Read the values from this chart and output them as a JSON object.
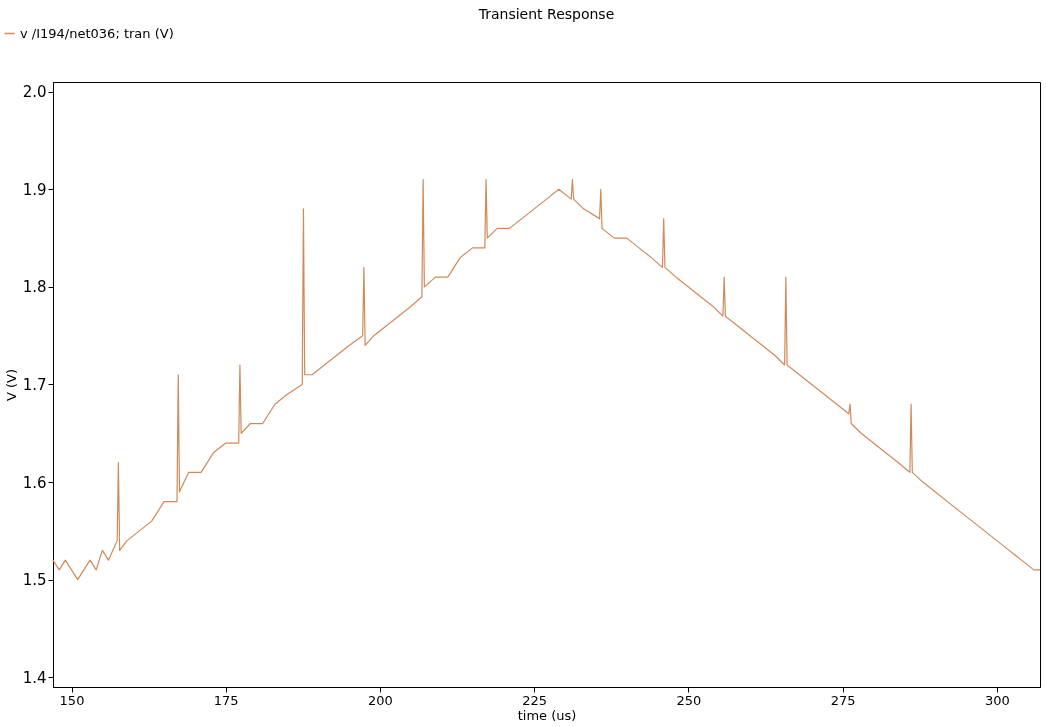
{
  "chart_data": {
    "type": "line",
    "title": "Transient Response",
    "xlabel": "time (us)",
    "ylabel": "V (V)",
    "xlim": [
      147,
      307
    ],
    "xticks": [
      150,
      175,
      200,
      225,
      250,
      275,
      300
    ],
    "ylim": [
      1.39,
      2.01
    ],
    "yticks": [
      1.4,
      1.5,
      1.6,
      1.7,
      1.8,
      1.9,
      {
        "value": 2,
        "label": "2.0"
      }
    ],
    "grid": false,
    "legend": "top left",
    "marker": "none",
    "line_style": "solid",
    "x": [
      147,
      148,
      149,
      150,
      151,
      152,
      153,
      154,
      155,
      156,
      157.4,
      157.6,
      157.8,
      159,
      161,
      163,
      165,
      167.1,
      167.3,
      167.5,
      169,
      171,
      173,
      175,
      177.1,
      177.3,
      177.5,
      179,
      181,
      183,
      185,
      187.4,
      187.6,
      187.8,
      189,
      191,
      193,
      195,
      197.2,
      197.4,
      197.6,
      199,
      201,
      203,
      205,
      206.8,
      207.0,
      207.2,
      209,
      211,
      213,
      215,
      217.0,
      217.2,
      217.4,
      219,
      221,
      223,
      225,
      227,
      229,
      231.0,
      231.2,
      231.4,
      233,
      235.6,
      235.8,
      236.0,
      238,
      240,
      242,
      244,
      245.8,
      246.0,
      246.2,
      248,
      250,
      252,
      254,
      255.6,
      255.8,
      256.0,
      258,
      260,
      262,
      264,
      265.6,
      265.8,
      266.0,
      268,
      270,
      272,
      274,
      276.0,
      276.2,
      276.4,
      278,
      280,
      282,
      284,
      285.9,
      286.1,
      286.3,
      288,
      290,
      292,
      294,
      296,
      298,
      300,
      302,
      304,
      306,
      307
    ],
    "series": [
      {
        "name": "v /I194/net036; tran (V)",
        "color": "#d08a5a",
        "values": [
          1.52,
          1.51,
          1.52,
          1.51,
          1.5,
          1.51,
          1.52,
          1.51,
          1.53,
          1.52,
          1.54,
          1.62,
          1.53,
          1.54,
          1.55,
          1.56,
          1.58,
          1.58,
          1.71,
          1.59,
          1.61,
          1.61,
          1.63,
          1.64,
          1.64,
          1.72,
          1.65,
          1.66,
          1.66,
          1.68,
          1.69,
          1.7,
          1.88,
          1.71,
          1.71,
          1.72,
          1.73,
          1.74,
          1.75,
          1.82,
          1.74,
          1.75,
          1.76,
          1.77,
          1.78,
          1.79,
          1.91,
          1.8,
          1.81,
          1.81,
          1.83,
          1.84,
          1.84,
          1.91,
          1.85,
          1.86,
          1.86,
          1.87,
          1.88,
          1.89,
          1.9,
          1.89,
          1.91,
          1.89,
          1.88,
          1.87,
          1.9,
          1.86,
          1.85,
          1.85,
          1.84,
          1.83,
          1.82,
          1.87,
          1.82,
          1.81,
          1.8,
          1.79,
          1.78,
          1.77,
          1.81,
          1.77,
          1.76,
          1.75,
          1.74,
          1.73,
          1.72,
          1.81,
          1.72,
          1.71,
          1.7,
          1.69,
          1.68,
          1.67,
          1.68,
          1.66,
          1.65,
          1.64,
          1.63,
          1.62,
          1.61,
          1.68,
          1.61,
          1.6,
          1.59,
          1.58,
          1.57,
          1.56,
          1.55,
          1.54,
          1.53,
          1.52,
          1.51,
          1.51
        ]
      }
    ]
  }
}
